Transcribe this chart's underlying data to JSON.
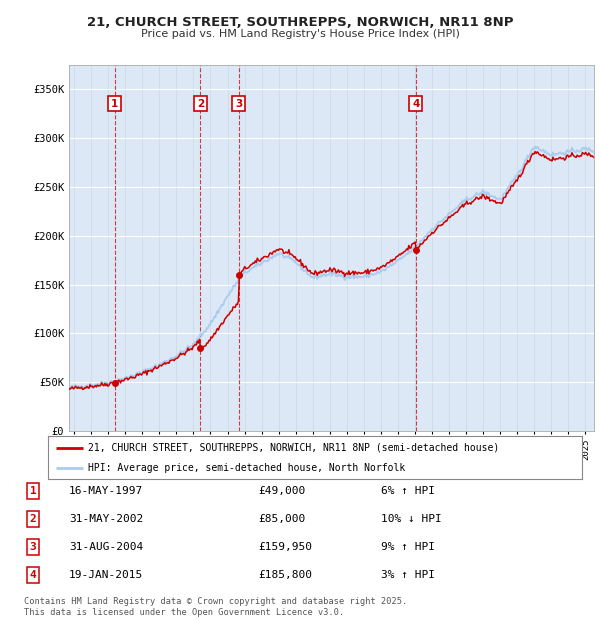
{
  "title_line1": "21, CHURCH STREET, SOUTHREPPS, NORWICH, NR11 8NP",
  "title_line2": "Price paid vs. HM Land Registry's House Price Index (HPI)",
  "background_color": "#ffffff",
  "plot_bg_color": "#dce8f5",
  "legend_label_red": "21, CHURCH STREET, SOUTHREPPS, NORWICH, NR11 8NP (semi-detached house)",
  "legend_label_blue": "HPI: Average price, semi-detached house, North Norfolk",
  "transactions": [
    {
      "num": 1,
      "date": "16-MAY-1997",
      "price": 49000,
      "pct": "6%",
      "dir": "↑",
      "year_x": 1997.37
    },
    {
      "num": 2,
      "date": "31-MAY-2002",
      "price": 85000,
      "pct": "10%",
      "dir": "↓",
      "year_x": 2002.41
    },
    {
      "num": 3,
      "date": "31-AUG-2004",
      "price": 159950,
      "pct": "9%",
      "dir": "↑",
      "year_x": 2004.66
    },
    {
      "num": 4,
      "date": "19-JAN-2015",
      "price": 185800,
      "pct": "3%",
      "dir": "↑",
      "year_x": 2015.05
    }
  ],
  "yticks": [
    0,
    50000,
    100000,
    150000,
    200000,
    250000,
    300000,
    350000
  ],
  "ylabels": [
    "£0",
    "£50K",
    "£100K",
    "£150K",
    "£200K",
    "£250K",
    "£300K",
    "£350K"
  ],
  "ylim": [
    0,
    375000
  ],
  "xlim_start": 1994.7,
  "xlim_end": 2025.5,
  "footer": "Contains HM Land Registry data © Crown copyright and database right 2025.\nThis data is licensed under the Open Government Licence v3.0.",
  "red_color": "#cc0000",
  "blue_color": "#aaccee",
  "fig_bg": "#f8f8f8"
}
